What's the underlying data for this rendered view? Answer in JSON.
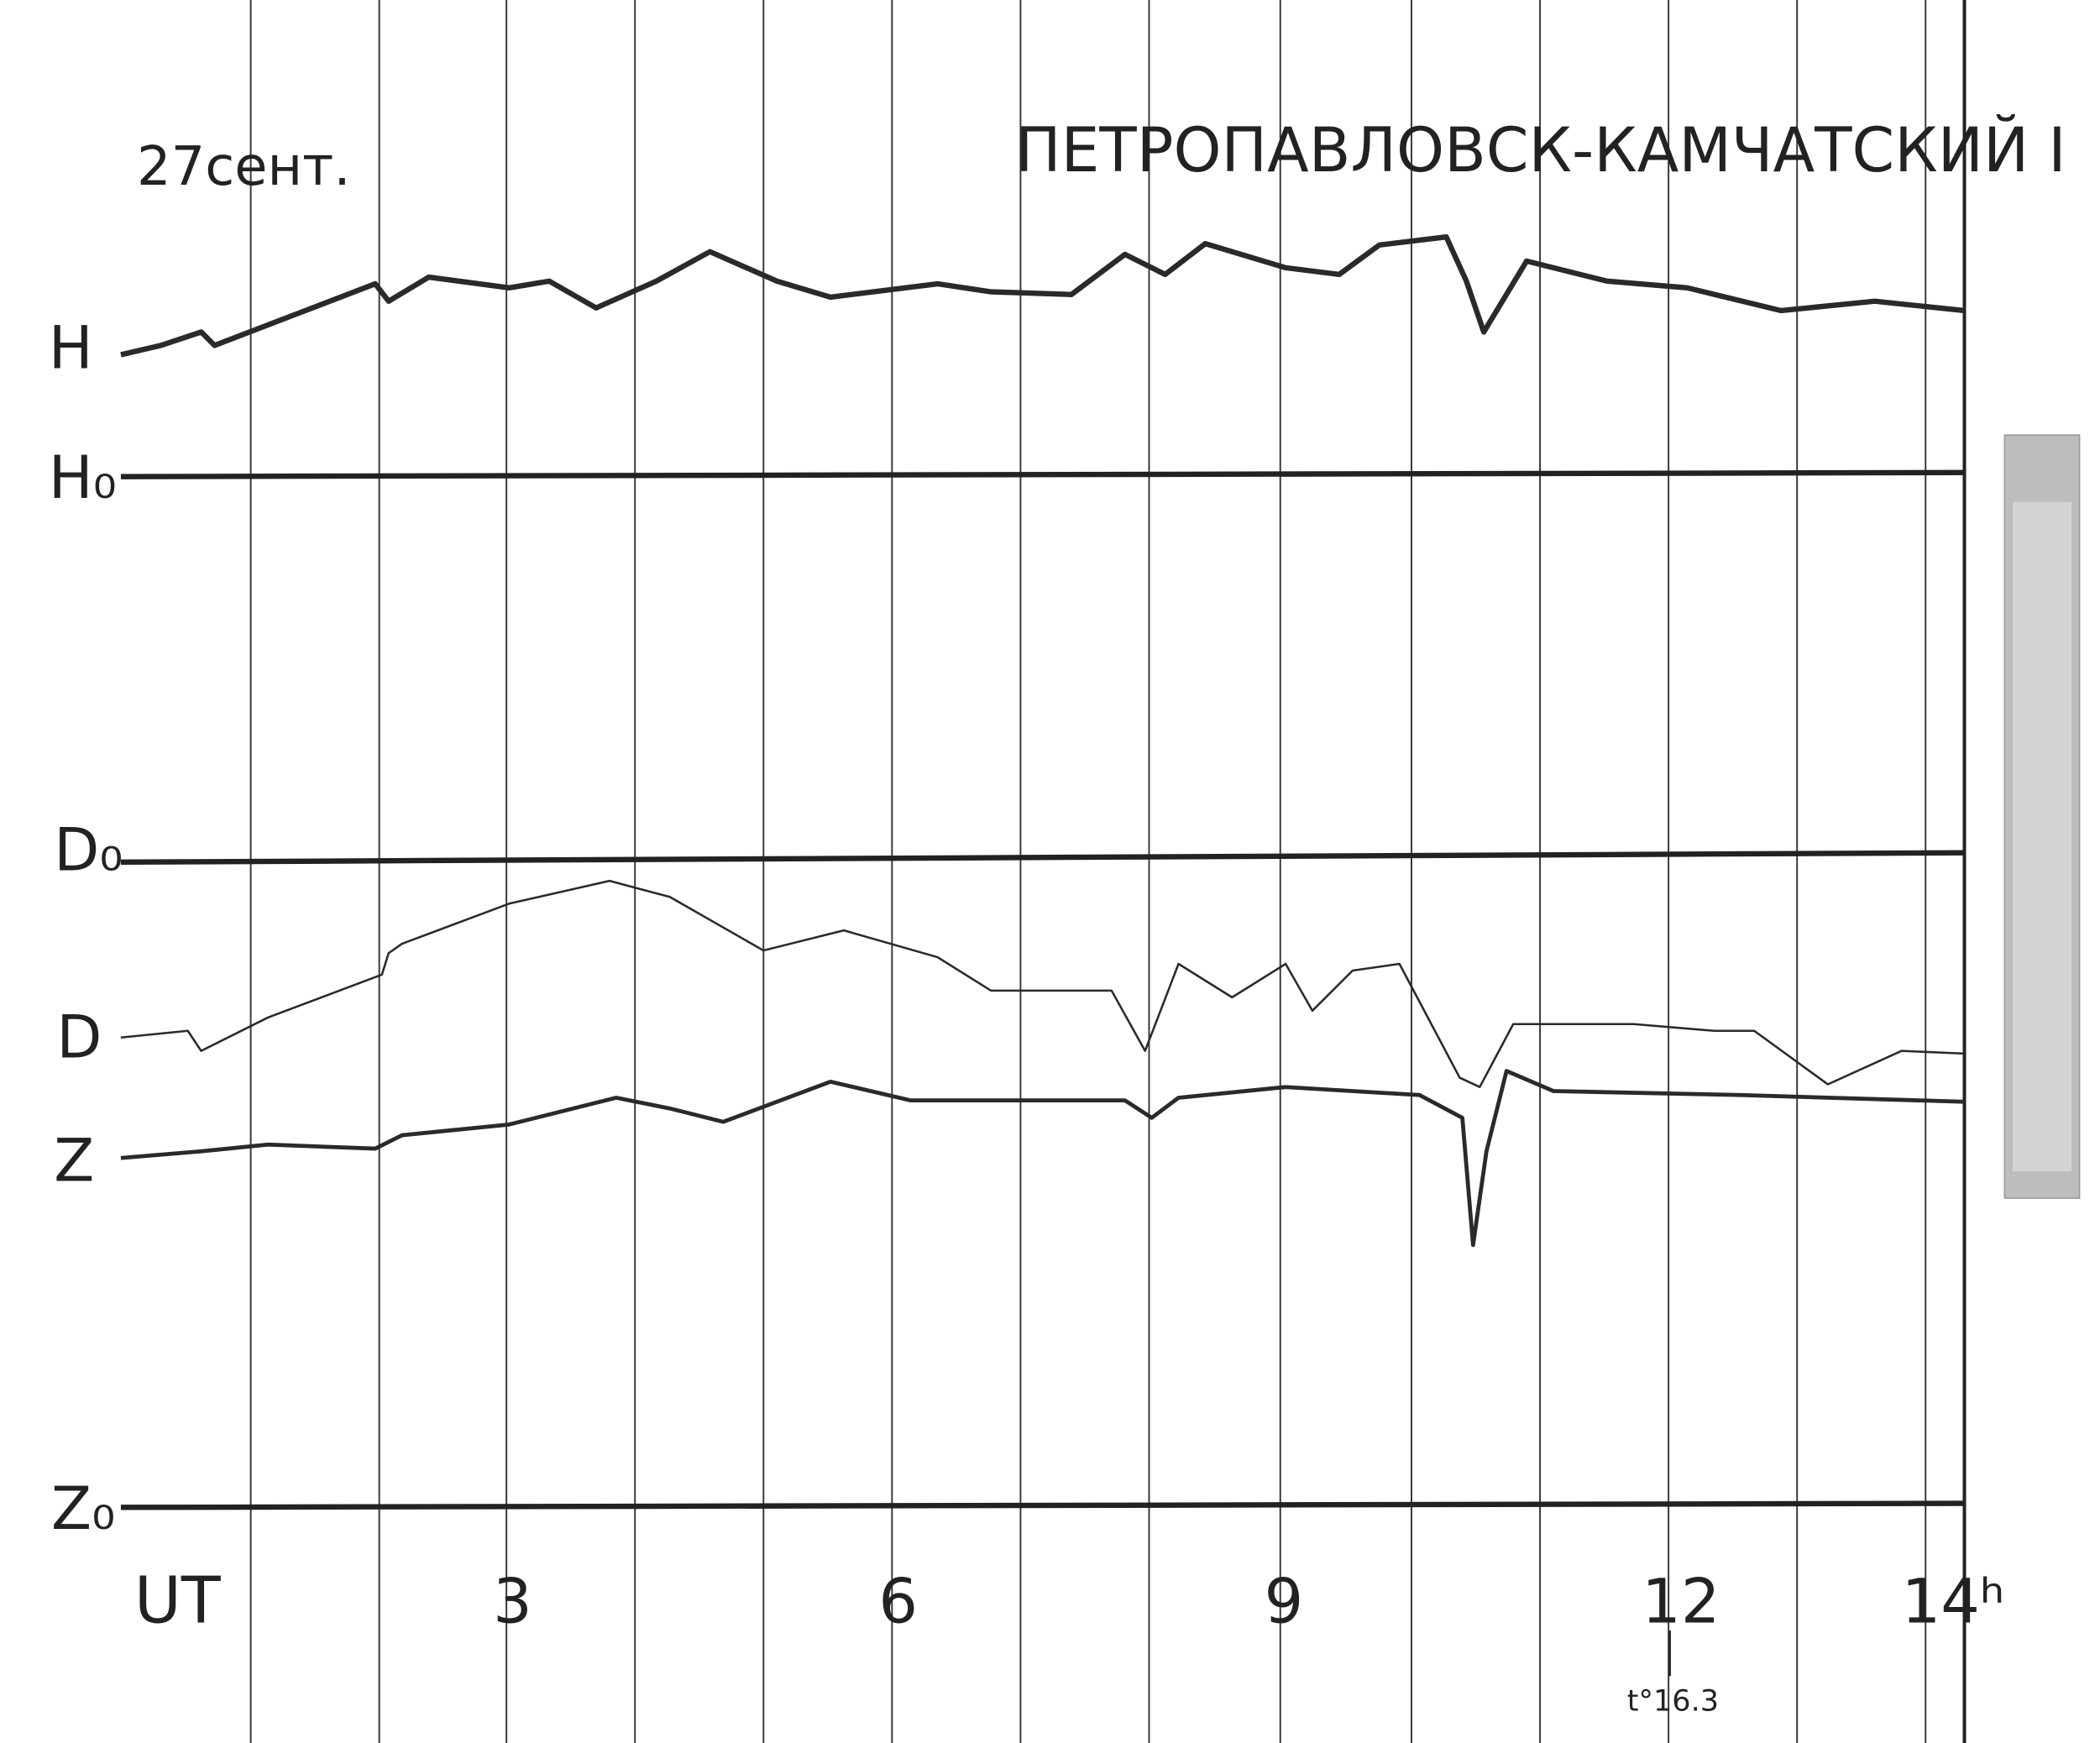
{
  "header": {
    "date": "27сент.",
    "station": "ПЕТРОПАВЛОВСК-КАМЧАТСКИЙ I"
  },
  "traces": [
    "H",
    "H₀",
    "D₀",
    "D",
    "Z",
    "Z₀"
  ],
  "time_axis": [
    "UT",
    "3",
    "6",
    "9",
    "12",
    "14ʰ"
  ],
  "temperature": "t°16.3"
}
